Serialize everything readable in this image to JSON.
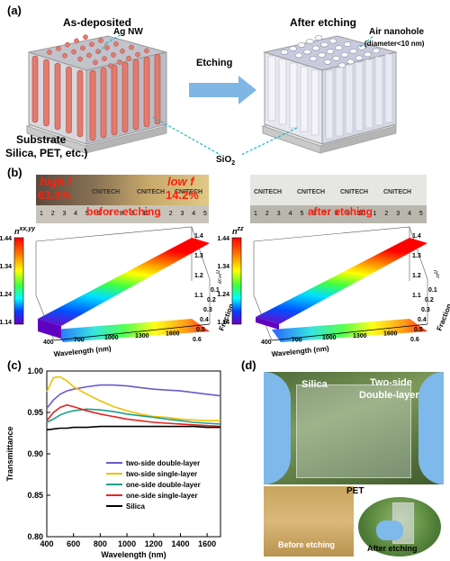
{
  "panels": {
    "a": {
      "label": "(a)",
      "as_deposited": "As-deposited",
      "after_etching": "After etching",
      "ag_nw": "Ag NW",
      "etching": "Etching",
      "air_nanohole": "Air nanohole",
      "air_nanohole_diam": "(diameter<10 nm)",
      "substrate_line1": "Substrate",
      "substrate_line2": "Silica, PET, etc.)",
      "sio2": "SiO",
      "sio2_sub": "2"
    },
    "b": {
      "label": "(b)",
      "photo_left": {
        "high_f": "high f",
        "high_val": "63.9%",
        "low_f": "low f",
        "low_val": "14.2%",
        "caption": "before etching",
        "brand": "CNITECH",
        "ruler_numbers": [
          "1",
          "2",
          "3",
          "4",
          "5",
          "6",
          "7",
          "8",
          "9",
          "10",
          "1",
          "2",
          "3",
          "4",
          "5"
        ]
      },
      "photo_right": {
        "caption": "after etching",
        "brand": "CNITECH",
        "ruler_numbers": [
          "1",
          "2",
          "3",
          "4",
          "5",
          "6",
          "7",
          "8",
          "9",
          "10",
          "1",
          "2",
          "3",
          "4",
          "5"
        ]
      },
      "left_plot": {
        "colorbar_title": "n",
        "colorbar_sup": "xx,yy",
        "colorbar_ticks": [
          "1.44",
          "1.34",
          "1.24",
          "1.14"
        ],
        "z_ticks": [
          "1.4",
          "1.3",
          "1.2",
          "1.1"
        ],
        "z_label": "n",
        "z_label_sup": "xx,yy",
        "x_ticks": [
          "400",
          "700",
          "1000",
          "1300",
          "1600"
        ],
        "xlabel": "Wavelength (nm)",
        "y_ticks": [
          "0.1",
          "0.2",
          "0.3",
          "0.4",
          "0.5",
          "0.6"
        ],
        "ylabel": "Fraction"
      },
      "right_plot": {
        "colorbar_title": "n",
        "colorbar_sup": "zz",
        "colorbar_ticks": [
          "1.44",
          "1.34",
          "1.24",
          "1.14"
        ],
        "z_ticks": [
          "1.4",
          "1.3",
          "1.2",
          "1.1"
        ],
        "z_label": "n",
        "z_label_sup": "zz",
        "x_ticks": [
          "400",
          "700",
          "1000",
          "1300",
          "1600"
        ],
        "xlabel": "Wavelength (nm)",
        "y_ticks": [
          "0.1",
          "0.2",
          "0.3",
          "0.4",
          "0.5",
          "0.6"
        ],
        "ylabel": "Fraction"
      }
    },
    "c": {
      "label": "(c)"
    },
    "d": {
      "label": "(d)",
      "silica": "Silica",
      "two_side_1": "Two-side",
      "two_side_2": "Double-layer",
      "pet": "PET",
      "before": "Before etching",
      "after": "After etching"
    }
  },
  "chart_data": {
    "type": "line",
    "xlabel": "Wavelength (nm)",
    "ylabel": "Transmittance",
    "xlim": [
      400,
      1700
    ],
    "ylim": [
      0.8,
      1.0
    ],
    "x_ticks": [
      400,
      600,
      800,
      1000,
      1200,
      1400,
      1600
    ],
    "y_ticks": [
      0.8,
      0.85,
      0.9,
      0.95,
      1.0
    ],
    "legend_position": "lower-right",
    "x": [
      400,
      450,
      500,
      550,
      600,
      700,
      800,
      900,
      1000,
      1100,
      1200,
      1300,
      1400,
      1500,
      1600,
      1700
    ],
    "series": [
      {
        "name": "two-side double-layer",
        "color": "#6a5acd",
        "values": [
          0.955,
          0.965,
          0.972,
          0.976,
          0.978,
          0.981,
          0.983,
          0.983,
          0.982,
          0.98,
          0.978,
          0.977,
          0.976,
          0.974,
          0.972,
          0.97
        ]
      },
      {
        "name": "two-side single-layer",
        "color": "#f0c000",
        "values": [
          0.975,
          0.992,
          0.993,
          0.988,
          0.981,
          0.972,
          0.964,
          0.957,
          0.952,
          0.948,
          0.945,
          0.944,
          0.942,
          0.941,
          0.94,
          0.94
        ]
      },
      {
        "name": "one-side double-layer",
        "color": "#1aa08c",
        "values": [
          0.938,
          0.942,
          0.947,
          0.95,
          0.952,
          0.954,
          0.953,
          0.951,
          0.948,
          0.946,
          0.944,
          0.942,
          0.94,
          0.938,
          0.937,
          0.936
        ]
      },
      {
        "name": "one-side single-layer",
        "color": "#e8231f",
        "values": [
          0.94,
          0.95,
          0.956,
          0.959,
          0.957,
          0.952,
          0.948,
          0.945,
          0.942,
          0.94,
          0.938,
          0.937,
          0.936,
          0.935,
          0.934,
          0.933
        ]
      },
      {
        "name": "Silica",
        "color": "#000000",
        "values": [
          0.929,
          0.93,
          0.931,
          0.931,
          0.932,
          0.932,
          0.933,
          0.933,
          0.933,
          0.933,
          0.933,
          0.933,
          0.933,
          0.933,
          0.932,
          0.932
        ]
      }
    ]
  }
}
